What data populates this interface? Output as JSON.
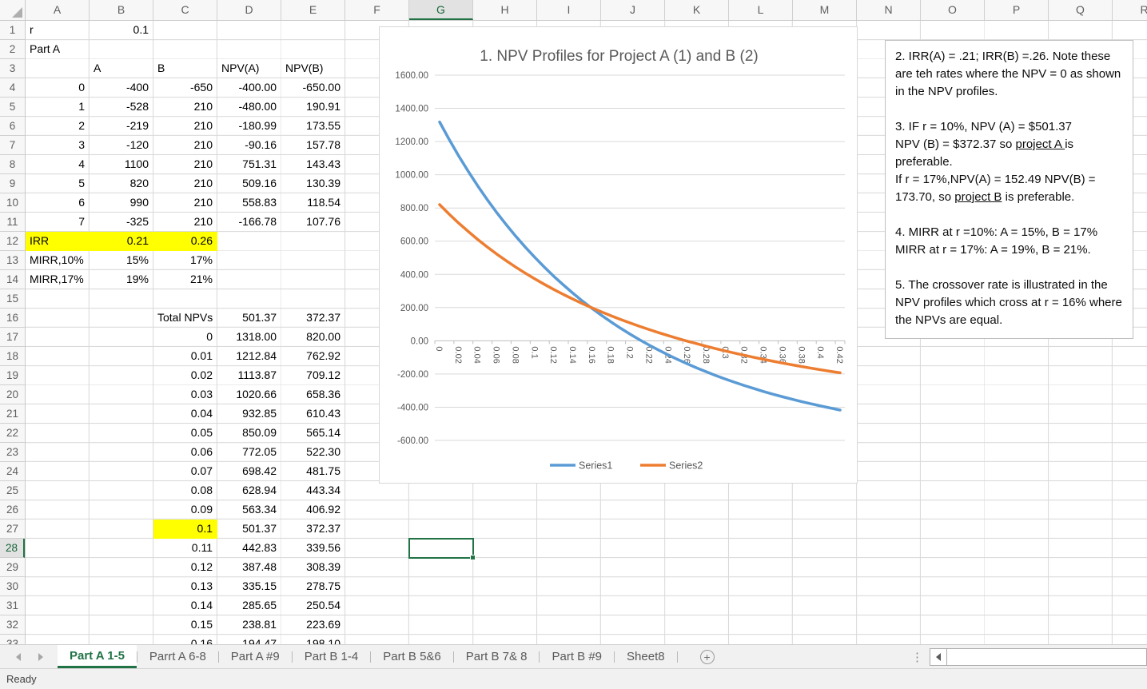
{
  "app": {
    "status": "Ready"
  },
  "grid": {
    "columns": [
      "A",
      "B",
      "C",
      "D",
      "E",
      "F",
      "G",
      "H",
      "I",
      "J",
      "K",
      "L",
      "M",
      "N",
      "O",
      "P",
      "Q",
      "R"
    ],
    "row_count": 33,
    "selected": {
      "cell": "G28",
      "column": "G",
      "row": 28
    },
    "highlight_color": "#FFFF00",
    "accent_color": "#217346",
    "cells": [
      {
        "r": 1,
        "c": "A",
        "v": "r",
        "a": "l"
      },
      {
        "r": 1,
        "c": "B",
        "v": "0.1",
        "a": "r"
      },
      {
        "r": 2,
        "c": "A",
        "v": "Part A",
        "a": "l"
      },
      {
        "r": 3,
        "c": "B",
        "v": "A",
        "a": "l"
      },
      {
        "r": 3,
        "c": "C",
        "v": "B",
        "a": "l"
      },
      {
        "r": 3,
        "c": "D",
        "v": "NPV(A)",
        "a": "l"
      },
      {
        "r": 3,
        "c": "E",
        "v": "NPV(B)",
        "a": "l"
      },
      {
        "r": 4,
        "c": "A",
        "v": "0",
        "a": "r"
      },
      {
        "r": 4,
        "c": "B",
        "v": "-400",
        "a": "r"
      },
      {
        "r": 4,
        "c": "C",
        "v": "-650",
        "a": "r"
      },
      {
        "r": 4,
        "c": "D",
        "v": "-400.00",
        "a": "r"
      },
      {
        "r": 4,
        "c": "E",
        "v": "-650.00",
        "a": "r"
      },
      {
        "r": 5,
        "c": "A",
        "v": "1",
        "a": "r"
      },
      {
        "r": 5,
        "c": "B",
        "v": "-528",
        "a": "r"
      },
      {
        "r": 5,
        "c": "C",
        "v": "210",
        "a": "r"
      },
      {
        "r": 5,
        "c": "D",
        "v": "-480.00",
        "a": "r"
      },
      {
        "r": 5,
        "c": "E",
        "v": "190.91",
        "a": "r"
      },
      {
        "r": 6,
        "c": "A",
        "v": "2",
        "a": "r"
      },
      {
        "r": 6,
        "c": "B",
        "v": "-219",
        "a": "r"
      },
      {
        "r": 6,
        "c": "C",
        "v": "210",
        "a": "r"
      },
      {
        "r": 6,
        "c": "D",
        "v": "-180.99",
        "a": "r"
      },
      {
        "r": 6,
        "c": "E",
        "v": "173.55",
        "a": "r"
      },
      {
        "r": 7,
        "c": "A",
        "v": "3",
        "a": "r"
      },
      {
        "r": 7,
        "c": "B",
        "v": "-120",
        "a": "r"
      },
      {
        "r": 7,
        "c": "C",
        "v": "210",
        "a": "r"
      },
      {
        "r": 7,
        "c": "D",
        "v": "-90.16",
        "a": "r"
      },
      {
        "r": 7,
        "c": "E",
        "v": "157.78",
        "a": "r"
      },
      {
        "r": 8,
        "c": "A",
        "v": "4",
        "a": "r"
      },
      {
        "r": 8,
        "c": "B",
        "v": "1100",
        "a": "r"
      },
      {
        "r": 8,
        "c": "C",
        "v": "210",
        "a": "r"
      },
      {
        "r": 8,
        "c": "D",
        "v": "751.31",
        "a": "r"
      },
      {
        "r": 8,
        "c": "E",
        "v": "143.43",
        "a": "r"
      },
      {
        "r": 9,
        "c": "A",
        "v": "5",
        "a": "r"
      },
      {
        "r": 9,
        "c": "B",
        "v": "820",
        "a": "r"
      },
      {
        "r": 9,
        "c": "C",
        "v": "210",
        "a": "r"
      },
      {
        "r": 9,
        "c": "D",
        "v": "509.16",
        "a": "r"
      },
      {
        "r": 9,
        "c": "E",
        "v": "130.39",
        "a": "r"
      },
      {
        "r": 10,
        "c": "A",
        "v": "6",
        "a": "r"
      },
      {
        "r": 10,
        "c": "B",
        "v": "990",
        "a": "r"
      },
      {
        "r": 10,
        "c": "C",
        "v": "210",
        "a": "r"
      },
      {
        "r": 10,
        "c": "D",
        "v": "558.83",
        "a": "r"
      },
      {
        "r": 10,
        "c": "E",
        "v": "118.54",
        "a": "r"
      },
      {
        "r": 11,
        "c": "A",
        "v": "7",
        "a": "r"
      },
      {
        "r": 11,
        "c": "B",
        "v": "-325",
        "a": "r"
      },
      {
        "r": 11,
        "c": "C",
        "v": "210",
        "a": "r"
      },
      {
        "r": 11,
        "c": "D",
        "v": "-166.78",
        "a": "r"
      },
      {
        "r": 11,
        "c": "E",
        "v": "107.76",
        "a": "r"
      },
      {
        "r": 12,
        "c": "A",
        "v": "IRR",
        "a": "l",
        "bg": "#FFFF00"
      },
      {
        "r": 12,
        "c": "B",
        "v": "0.21",
        "a": "r",
        "bg": "#FFFF00"
      },
      {
        "r": 12,
        "c": "C",
        "v": "0.26",
        "a": "r",
        "bg": "#FFFF00"
      },
      {
        "r": 13,
        "c": "A",
        "v": "MIRR,10%",
        "a": "l"
      },
      {
        "r": 13,
        "c": "B",
        "v": "15%",
        "a": "r"
      },
      {
        "r": 13,
        "c": "C",
        "v": "17%",
        "a": "r"
      },
      {
        "r": 14,
        "c": "A",
        "v": "MIRR,17%",
        "a": "l"
      },
      {
        "r": 14,
        "c": "B",
        "v": "19%",
        "a": "r"
      },
      {
        "r": 14,
        "c": "C",
        "v": "21%",
        "a": "r"
      },
      {
        "r": 16,
        "c": "C",
        "v": "Total NPVs",
        "a": "l"
      },
      {
        "r": 16,
        "c": "D",
        "v": "501.37",
        "a": "r"
      },
      {
        "r": 16,
        "c": "E",
        "v": "372.37",
        "a": "r"
      },
      {
        "r": 17,
        "c": "C",
        "v": "0",
        "a": "r"
      },
      {
        "r": 17,
        "c": "D",
        "v": "1318.00",
        "a": "r"
      },
      {
        "r": 17,
        "c": "E",
        "v": "820.00",
        "a": "r"
      },
      {
        "r": 18,
        "c": "C",
        "v": "0.01",
        "a": "r"
      },
      {
        "r": 18,
        "c": "D",
        "v": "1212.84",
        "a": "r"
      },
      {
        "r": 18,
        "c": "E",
        "v": "762.92",
        "a": "r"
      },
      {
        "r": 19,
        "c": "C",
        "v": "0.02",
        "a": "r"
      },
      {
        "r": 19,
        "c": "D",
        "v": "1113.87",
        "a": "r"
      },
      {
        "r": 19,
        "c": "E",
        "v": "709.12",
        "a": "r"
      },
      {
        "r": 20,
        "c": "C",
        "v": "0.03",
        "a": "r"
      },
      {
        "r": 20,
        "c": "D",
        "v": "1020.66",
        "a": "r"
      },
      {
        "r": 20,
        "c": "E",
        "v": "658.36",
        "a": "r"
      },
      {
        "r": 21,
        "c": "C",
        "v": "0.04",
        "a": "r"
      },
      {
        "r": 21,
        "c": "D",
        "v": "932.85",
        "a": "r"
      },
      {
        "r": 21,
        "c": "E",
        "v": "610.43",
        "a": "r"
      },
      {
        "r": 22,
        "c": "C",
        "v": "0.05",
        "a": "r"
      },
      {
        "r": 22,
        "c": "D",
        "v": "850.09",
        "a": "r"
      },
      {
        "r": 22,
        "c": "E",
        "v": "565.14",
        "a": "r"
      },
      {
        "r": 23,
        "c": "C",
        "v": "0.06",
        "a": "r"
      },
      {
        "r": 23,
        "c": "D",
        "v": "772.05",
        "a": "r"
      },
      {
        "r": 23,
        "c": "E",
        "v": "522.30",
        "a": "r"
      },
      {
        "r": 24,
        "c": "C",
        "v": "0.07",
        "a": "r"
      },
      {
        "r": 24,
        "c": "D",
        "v": "698.42",
        "a": "r"
      },
      {
        "r": 24,
        "c": "E",
        "v": "481.75",
        "a": "r"
      },
      {
        "r": 25,
        "c": "C",
        "v": "0.08",
        "a": "r"
      },
      {
        "r": 25,
        "c": "D",
        "v": "628.94",
        "a": "r"
      },
      {
        "r": 25,
        "c": "E",
        "v": "443.34",
        "a": "r"
      },
      {
        "r": 26,
        "c": "C",
        "v": "0.09",
        "a": "r"
      },
      {
        "r": 26,
        "c": "D",
        "v": "563.34",
        "a": "r"
      },
      {
        "r": 26,
        "c": "E",
        "v": "406.92",
        "a": "r"
      },
      {
        "r": 27,
        "c": "C",
        "v": "0.1",
        "a": "r",
        "bg": "#FFFF00"
      },
      {
        "r": 27,
        "c": "D",
        "v": "501.37",
        "a": "r"
      },
      {
        "r": 27,
        "c": "E",
        "v": "372.37",
        "a": "r"
      },
      {
        "r": 28,
        "c": "C",
        "v": "0.11",
        "a": "r"
      },
      {
        "r": 28,
        "c": "D",
        "v": "442.83",
        "a": "r"
      },
      {
        "r": 28,
        "c": "E",
        "v": "339.56",
        "a": "r"
      },
      {
        "r": 29,
        "c": "C",
        "v": "0.12",
        "a": "r"
      },
      {
        "r": 29,
        "c": "D",
        "v": "387.48",
        "a": "r"
      },
      {
        "r": 29,
        "c": "E",
        "v": "308.39",
        "a": "r"
      },
      {
        "r": 30,
        "c": "C",
        "v": "0.13",
        "a": "r"
      },
      {
        "r": 30,
        "c": "D",
        "v": "335.15",
        "a": "r"
      },
      {
        "r": 30,
        "c": "E",
        "v": "278.75",
        "a": "r"
      },
      {
        "r": 31,
        "c": "C",
        "v": "0.14",
        "a": "r"
      },
      {
        "r": 31,
        "c": "D",
        "v": "285.65",
        "a": "r"
      },
      {
        "r": 31,
        "c": "E",
        "v": "250.54",
        "a": "r"
      },
      {
        "r": 32,
        "c": "C",
        "v": "0.15",
        "a": "r"
      },
      {
        "r": 32,
        "c": "D",
        "v": "238.81",
        "a": "r"
      },
      {
        "r": 32,
        "c": "E",
        "v": "223.69",
        "a": "r"
      },
      {
        "r": 33,
        "c": "C",
        "v": "0.16",
        "a": "r"
      },
      {
        "r": 33,
        "c": "D",
        "v": "194.47",
        "a": "r"
      },
      {
        "r": 33,
        "c": "E",
        "v": "198.10",
        "a": "r"
      }
    ]
  },
  "chart_data": {
    "type": "line",
    "title": "1. NPV Profiles for Project A (1) and B (2)",
    "title_color": "#595959",
    "xlabel": "",
    "ylabel": "",
    "ylim": [
      -600,
      1600
    ],
    "ytick_step": 200,
    "xtick_every": 2,
    "grid": true,
    "legend_position": "bottom",
    "x": [
      0,
      0.01,
      0.02,
      0.03,
      0.04,
      0.05,
      0.06,
      0.07,
      0.08,
      0.09,
      0.1,
      0.11,
      0.12,
      0.13,
      0.14,
      0.15,
      0.16,
      0.17,
      0.18,
      0.19,
      0.2,
      0.21,
      0.22,
      0.23,
      0.24,
      0.25,
      0.26,
      0.27,
      0.28,
      0.29,
      0.3,
      0.31,
      0.32,
      0.33,
      0.34,
      0.35,
      0.36,
      0.37,
      0.38,
      0.39,
      0.4,
      0.41,
      0.42
    ],
    "series": [
      {
        "name": "Series1",
        "color": "#5B9BD5",
        "values": [
          1318.0,
          1212.84,
          1113.87,
          1020.66,
          932.85,
          850.09,
          772.05,
          698.42,
          628.94,
          563.34,
          501.37,
          442.83,
          387.48,
          335.15,
          285.65,
          238.81,
          194.47,
          152.49,
          112.72,
          75.05,
          39.35,
          5.49,
          -26.62,
          -57.08,
          -85.96,
          -113.38,
          -139.4,
          -164.11,
          -187.59,
          -209.88,
          -231.06,
          -250.93,
          -270.3,
          -288.29,
          -305.78,
          -322.07,
          -337.87,
          -352.62,
          -366.88,
          -380.24,
          -393.14,
          -405.25,
          -416.94
        ]
      },
      {
        "name": "Series2",
        "color": "#ED7D31",
        "values": [
          820.0,
          762.92,
          709.12,
          658.36,
          610.43,
          565.14,
          522.3,
          481.75,
          443.34,
          406.92,
          372.37,
          339.56,
          308.39,
          278.75,
          250.54,
          223.69,
          198.1,
          173.7,
          150.42,
          128.2,
          106.96,
          86.67,
          67.26,
          48.68,
          30.89,
          13.84,
          -2.5,
          -18.18,
          -33.23,
          -47.68,
          -61.56,
          -74.9,
          -87.73,
          -100.08,
          -111.97,
          -123.42,
          -134.45,
          -145.09,
          -155.35,
          -165.25,
          -174.8,
          -184.03,
          -192.95
        ]
      }
    ]
  },
  "notes": {
    "paragraphs": [
      {
        "lines": [
          [
            {
              "t": "2. IRR(A) = .21; IRR(B) =.26. Note these are teh rates where the NPV = 0 as shown in the NPV profiles."
            }
          ]
        ]
      },
      {
        "lines": [
          [
            {
              "t": "3. IF r = 10%, NPV (A) = $501.37"
            }
          ],
          [
            {
              "t": "NPV (B)  = $372.37 so "
            },
            {
              "t": "project A ",
              "u": true
            },
            {
              "t": "is preferable."
            }
          ],
          [
            {
              "t": "If r = 17%,NPV(A) = 152.49 NPV(B) = 173.70, so "
            },
            {
              "t": "project B",
              "u": true
            },
            {
              "t": " is preferable."
            }
          ]
        ]
      },
      {
        "lines": [
          [
            {
              "t": "4. MIRR at r =10%: A = 15%, B = 17%"
            }
          ],
          [
            {
              "t": "MIRR at r = 17%: A = 19%, B = 21%."
            }
          ]
        ]
      },
      {
        "lines": [
          [
            {
              "t": "5. The crossover rate is illustrated in the NPV profiles which cross at r = 16% where the NPVs are equal."
            }
          ]
        ]
      }
    ]
  },
  "sheet_tabs": {
    "tabs": [
      {
        "label": "Part A 1-5",
        "active": true
      },
      {
        "label": "Parrt A 6-8",
        "active": false
      },
      {
        "label": "Part A #9",
        "active": false
      },
      {
        "label": "Part B 1-4",
        "active": false
      },
      {
        "label": "Part B 5&6",
        "active": false
      },
      {
        "label": "Part B 7& 8",
        "active": false
      },
      {
        "label": "Part B #9",
        "active": false
      },
      {
        "label": "Sheet8",
        "active": false
      }
    ],
    "add_sheet_label": "+"
  }
}
